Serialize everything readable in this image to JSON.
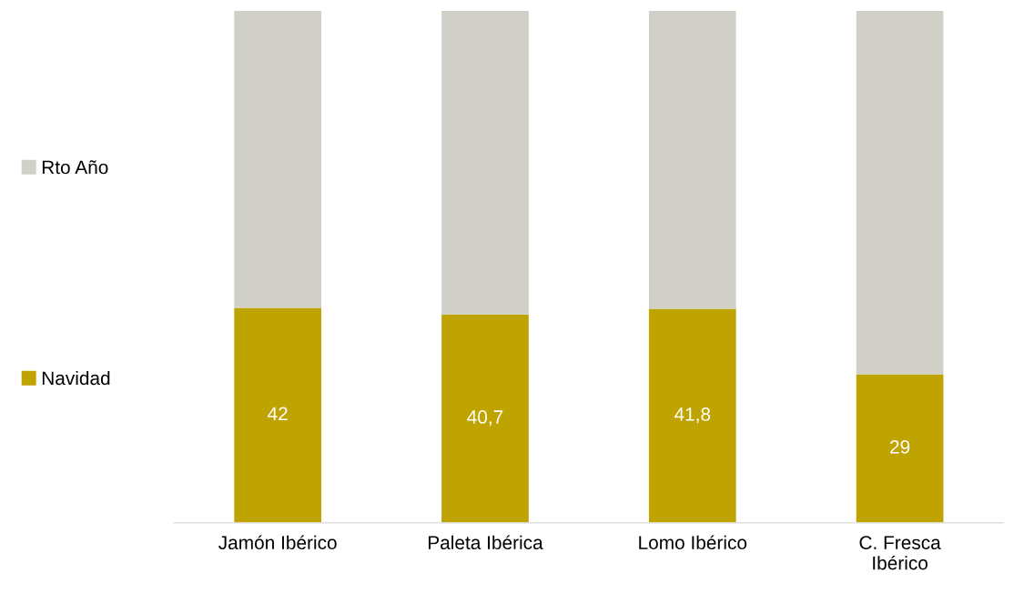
{
  "chart_data": {
    "type": "bar",
    "stacked": true,
    "relative": false,
    "categories": [
      "Jamón Ibérico",
      "Paleta Ibérica",
      "Lomo Ibérico",
      "C. Fresca\nIbérico"
    ],
    "series": [
      {
        "name": "Navidad",
        "color": "#bfa300",
        "values": [
          42,
          40.7,
          41.8,
          29
        ],
        "value_labels": [
          "42",
          "40,7",
          "41,8",
          "29"
        ]
      },
      {
        "name": "Rto Año",
        "color": "#d0d0c8",
        "values": [
          58,
          59.3,
          58.2,
          71
        ]
      }
    ],
    "ylim": [
      0,
      100
    ],
    "tick_labels": "x",
    "grid": false,
    "legend": "left"
  }
}
